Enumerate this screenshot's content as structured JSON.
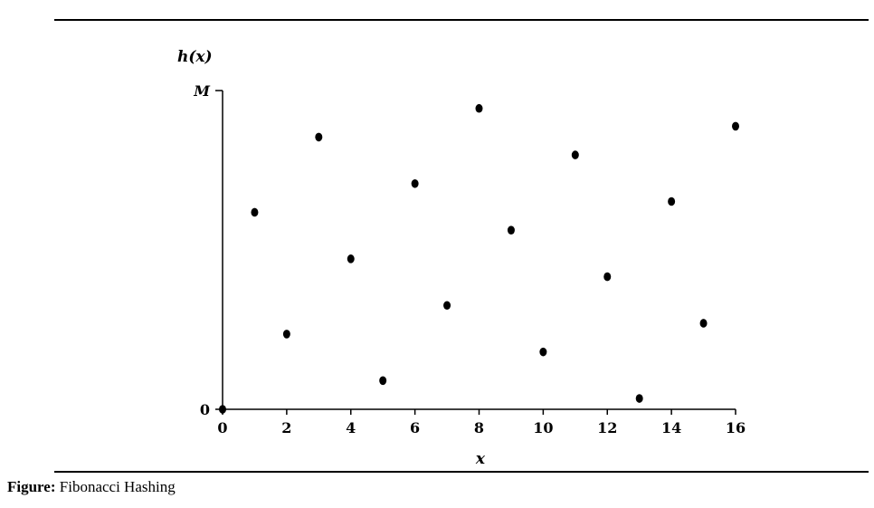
{
  "caption": {
    "label": "Figure:",
    "text": " Fibonacci Hashing"
  },
  "chart_data": {
    "type": "scatter",
    "x": [
      0,
      1,
      2,
      3,
      4,
      5,
      6,
      7,
      8,
      9,
      10,
      11,
      12,
      13,
      14,
      15,
      16
    ],
    "y": [
      0,
      0.618,
      0.236,
      0.854,
      0.472,
      0.09,
      0.708,
      0.326,
      0.944,
      0.562,
      0.18,
      0.798,
      0.416,
      0.034,
      0.652,
      0.27,
      0.888
    ],
    "xlabel": "x",
    "ylabel": "h(x)",
    "xlim": [
      0,
      16
    ],
    "ylim": [
      0,
      1
    ],
    "x_ticks": [
      0,
      2,
      4,
      6,
      8,
      10,
      12,
      14,
      16
    ],
    "y_tick_labels": [
      "0",
      "M"
    ],
    "grid": false,
    "marker_color": "#000000"
  }
}
